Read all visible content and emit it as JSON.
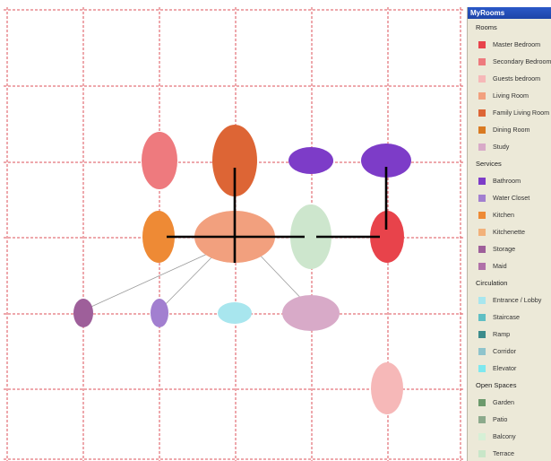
{
  "panel": {
    "title": "MyRooms",
    "sections": [
      {
        "label": "Rooms",
        "items": [
          {
            "label": "Master Bedroom",
            "color": "#e8434b"
          },
          {
            "label": "Secondary Bedroom",
            "color": "#ee7a7e"
          },
          {
            "label": "Guests bedroom",
            "color": "#f6b8b8"
          },
          {
            "label": "Living Room",
            "color": "#f2a07e"
          },
          {
            "label": "Family Living Room",
            "color": "#dd6535"
          },
          {
            "label": "Dining Room",
            "color": "#d97a22"
          },
          {
            "label": "Study",
            "color": "#d8aac8"
          }
        ]
      },
      {
        "label": "Services",
        "items": [
          {
            "label": "Bathroom",
            "color": "#7d3cc8"
          },
          {
            "label": "Water Closet",
            "color": "#a27fd0"
          },
          {
            "label": "Kitchen",
            "color": "#ee8a35"
          },
          {
            "label": "Kitchenette",
            "color": "#f2b17a"
          },
          {
            "label": "Storage",
            "color": "#9e5f9a"
          },
          {
            "label": "Maid",
            "color": "#b070a8"
          }
        ]
      },
      {
        "label": "Circulation",
        "items": [
          {
            "label": "Entrance / Lobby",
            "color": "#a8e6ee"
          },
          {
            "label": "Staircase",
            "color": "#5fbfc4"
          },
          {
            "label": "Ramp",
            "color": "#3c8c8c"
          },
          {
            "label": "Corridor",
            "color": "#8fc4cc"
          },
          {
            "label": "Elevator",
            "color": "#7ee8ef"
          }
        ]
      },
      {
        "label": "Open Spaces",
        "items": [
          {
            "label": "Garden",
            "color": "#6c9a6c"
          },
          {
            "label": "Patio",
            "color": "#8caa8c"
          },
          {
            "label": "Balcony",
            "color": "#d6f0d6"
          },
          {
            "label": "Terrace",
            "color": "#c8e6c8"
          }
        ]
      }
    ]
  },
  "canvas": {
    "grid_color": "#d9343b",
    "rooms": [
      {
        "type": "Secondary Bedroom",
        "color": "#ee7a7e"
      },
      {
        "type": "Family Living Room",
        "color": "#dd6535"
      },
      {
        "type": "Bathroom",
        "color": "#7d3cc8"
      },
      {
        "type": "Bathroom",
        "color": "#7d3cc8"
      },
      {
        "type": "Kitchen",
        "color": "#ee8a35"
      },
      {
        "type": "Living Room",
        "color": "#f2a07e"
      },
      {
        "type": "Terrace",
        "color": "#cde6cd"
      },
      {
        "type": "Master Bedroom",
        "color": "#e8434b"
      },
      {
        "type": "Storage",
        "color": "#9e5f9a"
      },
      {
        "type": "Water Closet",
        "color": "#a27fd0"
      },
      {
        "type": "Entrance / Lobby",
        "color": "#a8e6ee"
      },
      {
        "type": "Study",
        "color": "#d8aac8"
      },
      {
        "type": "Guests bedroom",
        "color": "#f6b8b8"
      }
    ]
  }
}
